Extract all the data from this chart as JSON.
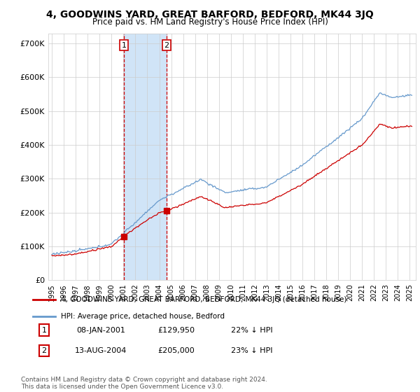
{
  "title": "4, GOODWINS YARD, GREAT BARFORD, BEDFORD, MK44 3JQ",
  "subtitle": "Price paid vs. HM Land Registry's House Price Index (HPI)",
  "ytick_values": [
    0,
    100000,
    200000,
    300000,
    400000,
    500000,
    600000,
    700000
  ],
  "ylim": [
    0,
    730000
  ],
  "xlim_start": 1994.7,
  "xlim_end": 2025.5,
  "hpi_color": "#6699cc",
  "hpi_fill_color": "#d0e4f7",
  "price_color": "#cc0000",
  "t1_year": 2001.03,
  "t2_year": 2004.62,
  "t1_price": 129950,
  "t2_price": 205000,
  "legend_label_price": "4, GOODWINS YARD, GREAT BARFORD, BEDFORD, MK44 3JQ (detached house)",
  "legend_label_hpi": "HPI: Average price, detached house, Bedford",
  "footer": "Contains HM Land Registry data © Crown copyright and database right 2024.\nThis data is licensed under the Open Government Licence v3.0.",
  "table_rows": [
    {
      "num": "1",
      "date": "08-JAN-2001",
      "price": "£129,950",
      "hpi": "22% ↓ HPI"
    },
    {
      "num": "2",
      "date": "13-AUG-2004",
      "price": "£205,000",
      "hpi": "23% ↓ HPI"
    }
  ],
  "background_color": "#ffffff",
  "grid_color": "#cccccc"
}
